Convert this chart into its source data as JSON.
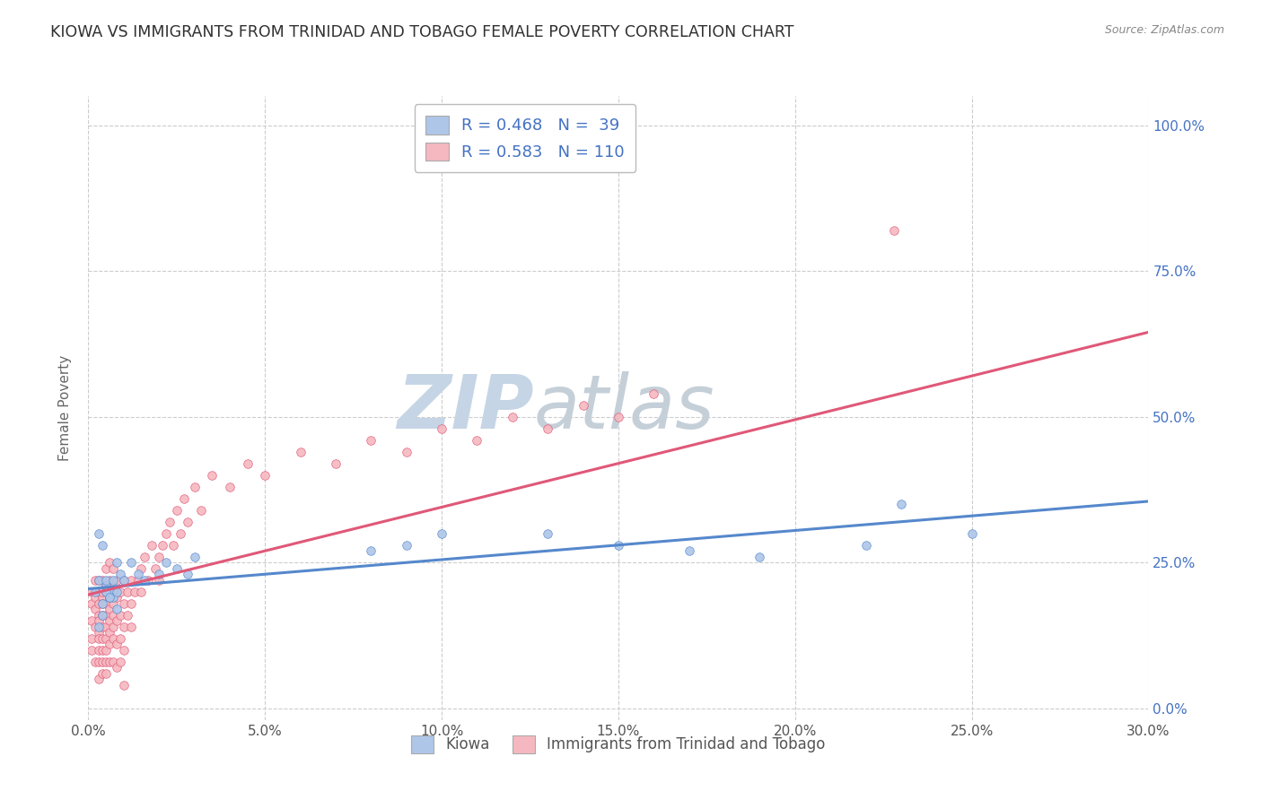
{
  "title": "KIOWA VS IMMIGRANTS FROM TRINIDAD AND TOBAGO FEMALE POVERTY CORRELATION CHART",
  "source": "Source: ZipAtlas.com",
  "ylabel_label": "Female Poverty",
  "xlim": [
    0.0,
    0.3
  ],
  "ylim": [
    -0.02,
    1.05
  ],
  "legend_labels": [
    "Kiowa",
    "Immigrants from Trinidad and Tobago"
  ],
  "kiowa_R": 0.468,
  "kiowa_N": 39,
  "tt_R": 0.583,
  "tt_N": 110,
  "kiowa_color": "#aec6e8",
  "tt_color": "#f5b8c0",
  "kiowa_line_color": "#5588cc",
  "tt_line_color": "#e05878",
  "watermark_zip": "ZIP",
  "watermark_atlas": "atlas",
  "watermark_color_zip": "#c5d5e5",
  "watermark_color_atlas": "#c5cfd8",
  "background_color": "#ffffff",
  "grid_color": "#cccccc",
  "title_color": "#303030",
  "label_color": "#4472c4",
  "kiowa_x": [
    0.002,
    0.003,
    0.004,
    0.005,
    0.006,
    0.007,
    0.008,
    0.003,
    0.004,
    0.005,
    0.006,
    0.007,
    0.008,
    0.009,
    0.01,
    0.012,
    0.014,
    0.016,
    0.005,
    0.006,
    0.007,
    0.008,
    0.02,
    0.022,
    0.025,
    0.028,
    0.03,
    0.08,
    0.09,
    0.1,
    0.13,
    0.15,
    0.17,
    0.19,
    0.22,
    0.23,
    0.25,
    0.003,
    0.004
  ],
  "kiowa_y": [
    0.2,
    0.22,
    0.18,
    0.21,
    0.19,
    0.2,
    0.17,
    0.3,
    0.28,
    0.22,
    0.2,
    0.19,
    0.25,
    0.23,
    0.22,
    0.25,
    0.23,
    0.22,
    0.2,
    0.19,
    0.22,
    0.2,
    0.23,
    0.25,
    0.24,
    0.23,
    0.26,
    0.27,
    0.28,
    0.3,
    0.3,
    0.28,
    0.27,
    0.26,
    0.28,
    0.35,
    0.3,
    0.14,
    0.16
  ],
  "tt_x": [
    0.001,
    0.001,
    0.001,
    0.001,
    0.001,
    0.002,
    0.002,
    0.002,
    0.002,
    0.002,
    0.003,
    0.003,
    0.003,
    0.003,
    0.003,
    0.003,
    0.003,
    0.003,
    0.003,
    0.003,
    0.004,
    0.004,
    0.004,
    0.004,
    0.004,
    0.004,
    0.004,
    0.004,
    0.004,
    0.004,
    0.005,
    0.005,
    0.005,
    0.005,
    0.005,
    0.005,
    0.005,
    0.005,
    0.005,
    0.005,
    0.006,
    0.006,
    0.006,
    0.006,
    0.006,
    0.006,
    0.006,
    0.006,
    0.007,
    0.007,
    0.007,
    0.007,
    0.007,
    0.007,
    0.007,
    0.008,
    0.008,
    0.008,
    0.008,
    0.008,
    0.009,
    0.009,
    0.009,
    0.009,
    0.01,
    0.01,
    0.01,
    0.01,
    0.011,
    0.011,
    0.012,
    0.012,
    0.012,
    0.013,
    0.014,
    0.015,
    0.015,
    0.016,
    0.017,
    0.018,
    0.019,
    0.02,
    0.02,
    0.021,
    0.022,
    0.023,
    0.024,
    0.025,
    0.026,
    0.027,
    0.028,
    0.03,
    0.032,
    0.035,
    0.04,
    0.045,
    0.05,
    0.06,
    0.07,
    0.08,
    0.09,
    0.1,
    0.11,
    0.12,
    0.13,
    0.14,
    0.15,
    0.16,
    0.228,
    0.01
  ],
  "tt_y": [
    0.18,
    0.15,
    0.12,
    0.2,
    0.1,
    0.17,
    0.14,
    0.22,
    0.19,
    0.08,
    0.16,
    0.13,
    0.2,
    0.1,
    0.18,
    0.15,
    0.22,
    0.08,
    0.05,
    0.12,
    0.19,
    0.16,
    0.22,
    0.1,
    0.14,
    0.18,
    0.08,
    0.12,
    0.2,
    0.06,
    0.21,
    0.18,
    0.14,
    0.1,
    0.24,
    0.08,
    0.16,
    0.2,
    0.12,
    0.06,
    0.22,
    0.19,
    0.15,
    0.11,
    0.25,
    0.08,
    0.17,
    0.13,
    0.2,
    0.16,
    0.12,
    0.08,
    0.24,
    0.18,
    0.14,
    0.22,
    0.19,
    0.15,
    0.11,
    0.07,
    0.2,
    0.16,
    0.12,
    0.08,
    0.22,
    0.18,
    0.14,
    0.1,
    0.2,
    0.16,
    0.22,
    0.18,
    0.14,
    0.2,
    0.22,
    0.24,
    0.2,
    0.26,
    0.22,
    0.28,
    0.24,
    0.26,
    0.22,
    0.28,
    0.3,
    0.32,
    0.28,
    0.34,
    0.3,
    0.36,
    0.32,
    0.38,
    0.34,
    0.4,
    0.38,
    0.42,
    0.4,
    0.44,
    0.42,
    0.46,
    0.44,
    0.48,
    0.46,
    0.5,
    0.48,
    0.52,
    0.5,
    0.54,
    0.82,
    0.04
  ]
}
